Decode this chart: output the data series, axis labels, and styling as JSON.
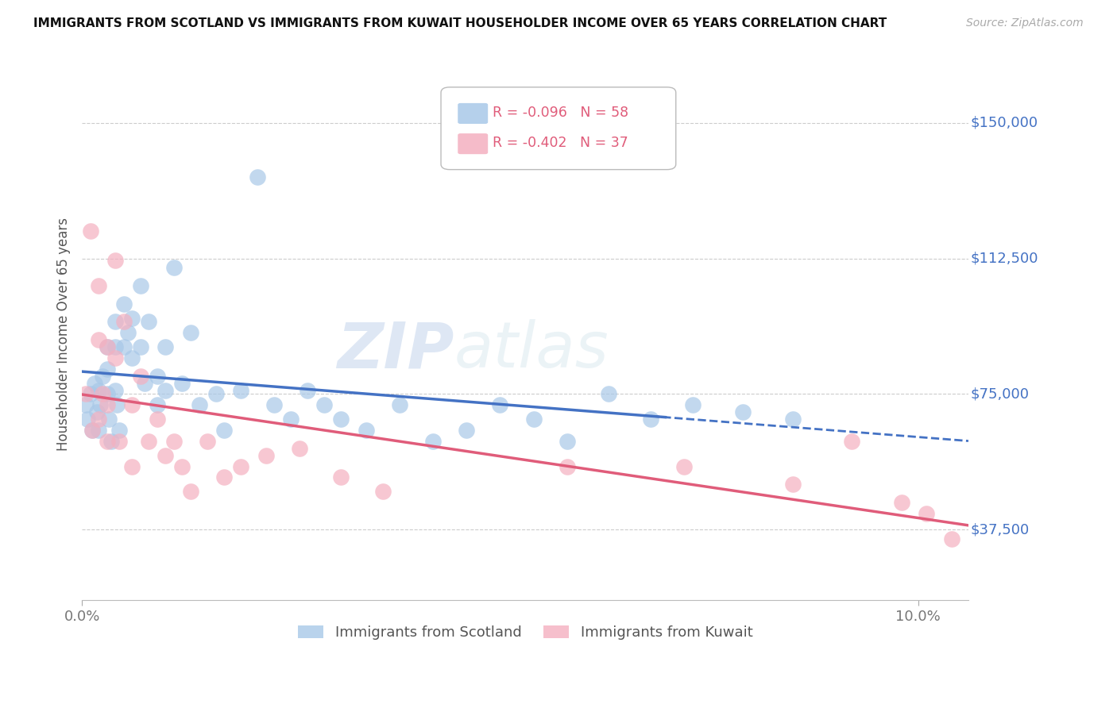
{
  "title": "IMMIGRANTS FROM SCOTLAND VS IMMIGRANTS FROM KUWAIT HOUSEHOLDER INCOME OVER 65 YEARS CORRELATION CHART",
  "source": "Source: ZipAtlas.com",
  "ylabel": "Householder Income Over 65 years",
  "y_ticks": [
    37500,
    75000,
    112500,
    150000
  ],
  "y_tick_labels": [
    "$37,500",
    "$75,000",
    "$112,500",
    "$150,000"
  ],
  "y_min": 18000,
  "y_max": 165000,
  "x_min": 0.0,
  "x_max": 0.106,
  "scotland_R": -0.096,
  "scotland_N": 58,
  "kuwait_R": -0.402,
  "kuwait_N": 37,
  "scotland_color": "#a8c8e8",
  "kuwait_color": "#f4b0c0",
  "scotland_line_color": "#4472c4",
  "kuwait_line_color": "#e05c7a",
  "watermark_zip": "ZIP",
  "watermark_atlas": "atlas",
  "scotland_x": [
    0.0005,
    0.0007,
    0.001,
    0.0012,
    0.0015,
    0.0018,
    0.002,
    0.002,
    0.0022,
    0.0025,
    0.003,
    0.003,
    0.003,
    0.0032,
    0.0035,
    0.004,
    0.004,
    0.004,
    0.0042,
    0.0045,
    0.005,
    0.005,
    0.0055,
    0.006,
    0.006,
    0.007,
    0.007,
    0.0075,
    0.008,
    0.009,
    0.009,
    0.01,
    0.01,
    0.011,
    0.012,
    0.013,
    0.014,
    0.016,
    0.017,
    0.019,
    0.021,
    0.023,
    0.025,
    0.027,
    0.029,
    0.031,
    0.034,
    0.038,
    0.042,
    0.046,
    0.05,
    0.054,
    0.058,
    0.063,
    0.068,
    0.073,
    0.079,
    0.085
  ],
  "scotland_y": [
    72000,
    68000,
    75000,
    65000,
    78000,
    70000,
    76000,
    65000,
    72000,
    80000,
    88000,
    82000,
    75000,
    68000,
    62000,
    95000,
    88000,
    76000,
    72000,
    65000,
    100000,
    88000,
    92000,
    96000,
    85000,
    105000,
    88000,
    78000,
    95000,
    80000,
    72000,
    88000,
    76000,
    110000,
    78000,
    92000,
    72000,
    75000,
    65000,
    76000,
    135000,
    72000,
    68000,
    76000,
    72000,
    68000,
    65000,
    72000,
    62000,
    65000,
    72000,
    68000,
    62000,
    75000,
    68000,
    72000,
    70000,
    68000
  ],
  "kuwait_x": [
    0.0005,
    0.001,
    0.0012,
    0.002,
    0.002,
    0.002,
    0.0025,
    0.003,
    0.003,
    0.003,
    0.004,
    0.004,
    0.0045,
    0.005,
    0.006,
    0.006,
    0.007,
    0.008,
    0.009,
    0.01,
    0.011,
    0.012,
    0.013,
    0.015,
    0.017,
    0.019,
    0.022,
    0.026,
    0.031,
    0.036,
    0.058,
    0.072,
    0.085,
    0.092,
    0.098,
    0.101,
    0.104
  ],
  "kuwait_y": [
    75000,
    120000,
    65000,
    105000,
    90000,
    68000,
    75000,
    88000,
    72000,
    62000,
    112000,
    85000,
    62000,
    95000,
    72000,
    55000,
    80000,
    62000,
    68000,
    58000,
    62000,
    55000,
    48000,
    62000,
    52000,
    55000,
    58000,
    60000,
    52000,
    48000,
    55000,
    55000,
    50000,
    62000,
    45000,
    42000,
    35000
  ]
}
